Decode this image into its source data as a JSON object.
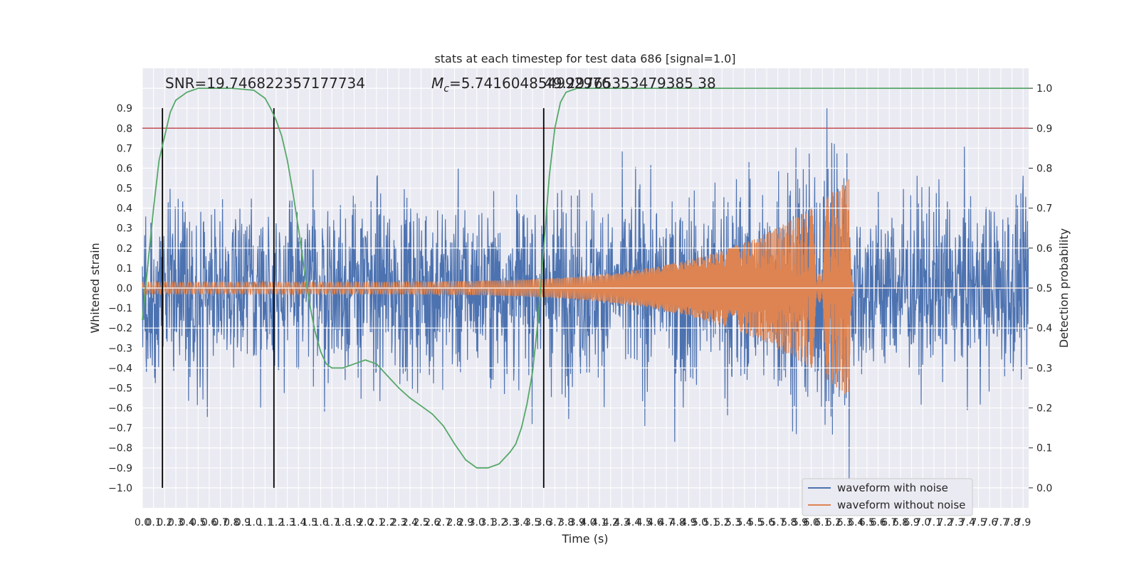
{
  "chart_data": {
    "type": "line",
    "title": "stats at each timestep for test data 686 [signal=1.0]",
    "xlabel": "Time (s)",
    "ylabel": "Whitened strain",
    "ylabel_right": "Detection probability",
    "xlim": [
      0.0,
      7.95
    ],
    "ylim": [
      -1.1,
      1.1
    ],
    "ylim_right": [
      -0.05,
      1.05
    ],
    "x_ticks": [
      "0.0",
      "0.1",
      "0.2",
      "0.3",
      "0.4",
      "0.5",
      "0.6",
      "0.7",
      "0.8",
      "0.9",
      "1.0",
      "1.1",
      "1.2",
      "1.3",
      "1.4",
      "1.5",
      "1.6",
      "1.7",
      "1.8",
      "1.9",
      "2.0",
      "2.1",
      "2.2",
      "2.3",
      "2.4",
      "2.5",
      "2.6",
      "2.7",
      "2.8",
      "2.9",
      "3.0",
      "3.1",
      "3.2",
      "3.3",
      "3.4",
      "3.5",
      "3.6",
      "3.7",
      "3.8",
      "3.9",
      "4.0",
      "4.1",
      "4.2",
      "4.3",
      "4.4",
      "4.5",
      "4.6",
      "4.7",
      "4.8",
      "4.9",
      "5.0",
      "5.1",
      "5.2",
      "5.3",
      "5.4",
      "5.5",
      "5.6",
      "5.7",
      "5.8",
      "5.9",
      "6.0",
      "6.1",
      "6.2",
      "6.3",
      "6.4",
      "6.5",
      "6.6",
      "6.7",
      "6.8",
      "6.9",
      "7.0",
      "7.1",
      "7.2",
      "7.3",
      "7.4",
      "7.5",
      "7.6",
      "7.7",
      "7.8",
      "7.9"
    ],
    "y_ticks": [
      "−1.0",
      "−0.9",
      "−0.8",
      "−0.7",
      "−0.6",
      "−0.5",
      "−0.4",
      "−0.3",
      "−0.2",
      "−0.1",
      "0.0",
      "0.1",
      "0.2",
      "0.3",
      "0.4",
      "0.5",
      "0.6",
      "0.7",
      "0.8",
      "0.9"
    ],
    "y_ticks_right": [
      "0.0",
      "0.1",
      "0.2",
      "0.3",
      "0.4",
      "0.5",
      "0.6",
      "0.7",
      "0.8",
      "0.9",
      "1.0"
    ],
    "annotations": {
      "snr": "SNR=19.746822357177734",
      "mc_symbol": "M",
      "mc_sub": "c",
      "mc_value": "=5.741604854992976",
      "mc_overlap": "49.29765353479385 38"
    },
    "threshold_right": 0.9,
    "vlines_x": [
      0.18,
      1.18,
      3.6
    ],
    "merger_time": 6.34,
    "legend": {
      "placement": "lower right",
      "entries": [
        {
          "label": "waveform with noise",
          "color": "#4c72b0"
        },
        {
          "label": "waveform without noise",
          "color": "#dd8452"
        }
      ]
    },
    "series": [
      {
        "name": "waveform with noise",
        "kind": "noisy strain (std≈0.22, range ≈ −0.97 to 0.90)"
      },
      {
        "name": "waveform without noise",
        "kind": "chirp, amplitude 0.03 → 0.55 at merger ≈ 6.34 s"
      },
      {
        "name": "Detection probability",
        "axis": "right",
        "x": [
          0.0,
          0.05,
          0.1,
          0.15,
          0.2,
          0.25,
          0.3,
          0.4,
          0.5,
          0.6,
          0.8,
          1.0,
          1.1,
          1.15,
          1.2,
          1.25,
          1.3,
          1.35,
          1.4,
          1.45,
          1.5,
          1.55,
          1.6,
          1.65,
          1.7,
          1.8,
          1.9,
          2.0,
          2.1,
          2.2,
          2.3,
          2.4,
          2.5,
          2.6,
          2.7,
          2.8,
          2.9,
          3.0,
          3.1,
          3.2,
          3.3,
          3.35,
          3.4,
          3.45,
          3.5,
          3.55,
          3.6,
          3.65,
          3.7,
          3.75,
          3.8,
          3.9,
          4.0,
          4.5,
          5.0,
          6.0,
          7.0,
          7.95
        ],
        "y": [
          0.42,
          0.56,
          0.7,
          0.82,
          0.88,
          0.94,
          0.97,
          0.99,
          1.0,
          1.0,
          1.0,
          0.995,
          0.975,
          0.95,
          0.92,
          0.88,
          0.82,
          0.74,
          0.65,
          0.55,
          0.46,
          0.39,
          0.34,
          0.31,
          0.3,
          0.3,
          0.31,
          0.32,
          0.31,
          0.28,
          0.25,
          0.225,
          0.205,
          0.185,
          0.155,
          0.11,
          0.07,
          0.05,
          0.05,
          0.06,
          0.09,
          0.11,
          0.15,
          0.21,
          0.29,
          0.42,
          0.6,
          0.78,
          0.9,
          0.965,
          0.99,
          1.0,
          1.0,
          1.0,
          1.0,
          1.0,
          1.0,
          1.0
        ]
      }
    ],
    "colors": {
      "noise": "#4c72b0",
      "clean": "#dd8452",
      "prob": "#55a868",
      "threshold": "#c44e52",
      "vline": "#000000",
      "plot_bg": "#eaeaf2",
      "grid": "#ffffff"
    },
    "grid": true
  }
}
